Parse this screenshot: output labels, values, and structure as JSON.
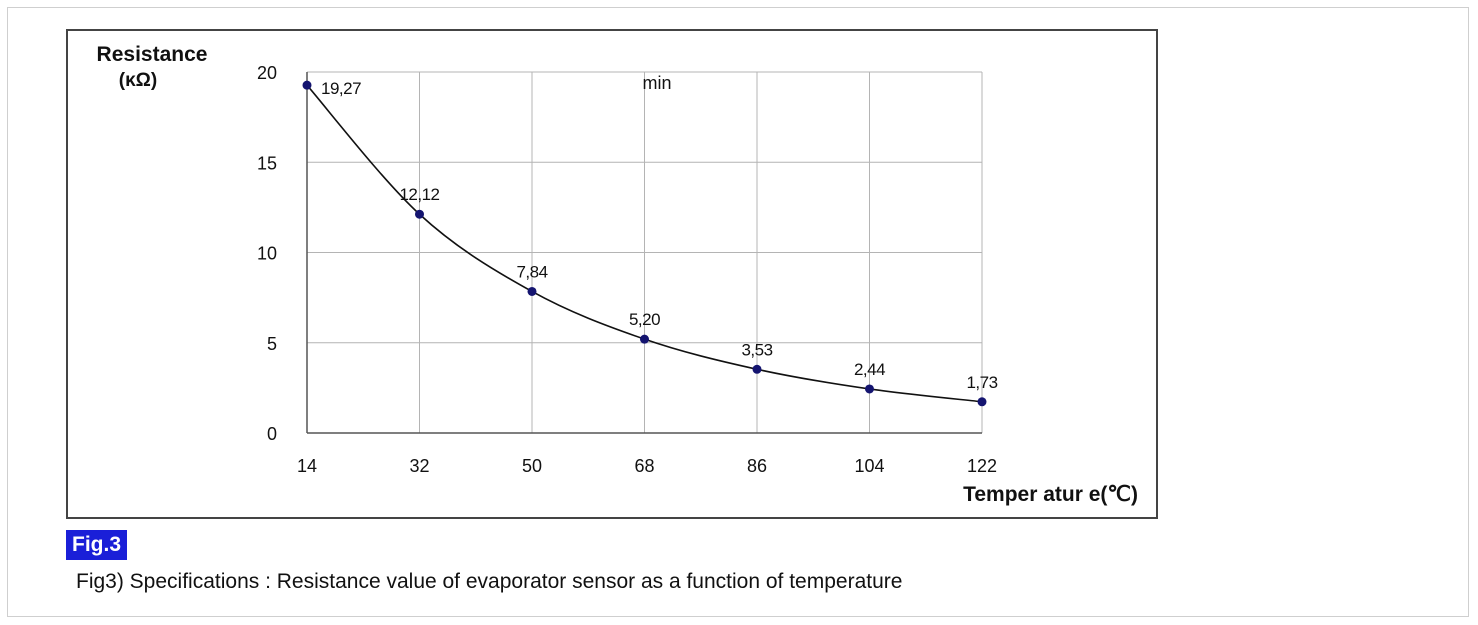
{
  "figure": {
    "badge": "Fig.3",
    "caption": "Fig3) Specifications : Resistance value of evaporator sensor as a function of temperature"
  },
  "colors": {
    "marker": "#141470",
    "line": "#111111",
    "grid": "#b4b4b4",
    "badge_bg": "#1a1fd8"
  },
  "chart_data": {
    "type": "line",
    "title": "",
    "annotation": "min",
    "ylabel_line1": "Resistance",
    "ylabel_line2": "(κΩ)",
    "xlabel": "Temper atur e(℃)",
    "x": [
      14,
      32,
      50,
      68,
      86,
      104,
      122
    ],
    "xticks": [
      "14",
      "32",
      "50",
      "68",
      "86",
      "104",
      "122"
    ],
    "yticks": [
      "0",
      "5",
      "10",
      "15",
      "20"
    ],
    "xlim": [
      14,
      122
    ],
    "ylim": [
      0,
      20
    ],
    "grid": true,
    "legend": "none",
    "series": [
      {
        "values": [
          19.27,
          12.12,
          7.84,
          5.2,
          3.53,
          2.44,
          1.73
        ],
        "labels": [
          "19,27",
          "12,12",
          "7,84",
          "5,20",
          "3,53",
          "2,44",
          "1,73"
        ]
      }
    ]
  }
}
